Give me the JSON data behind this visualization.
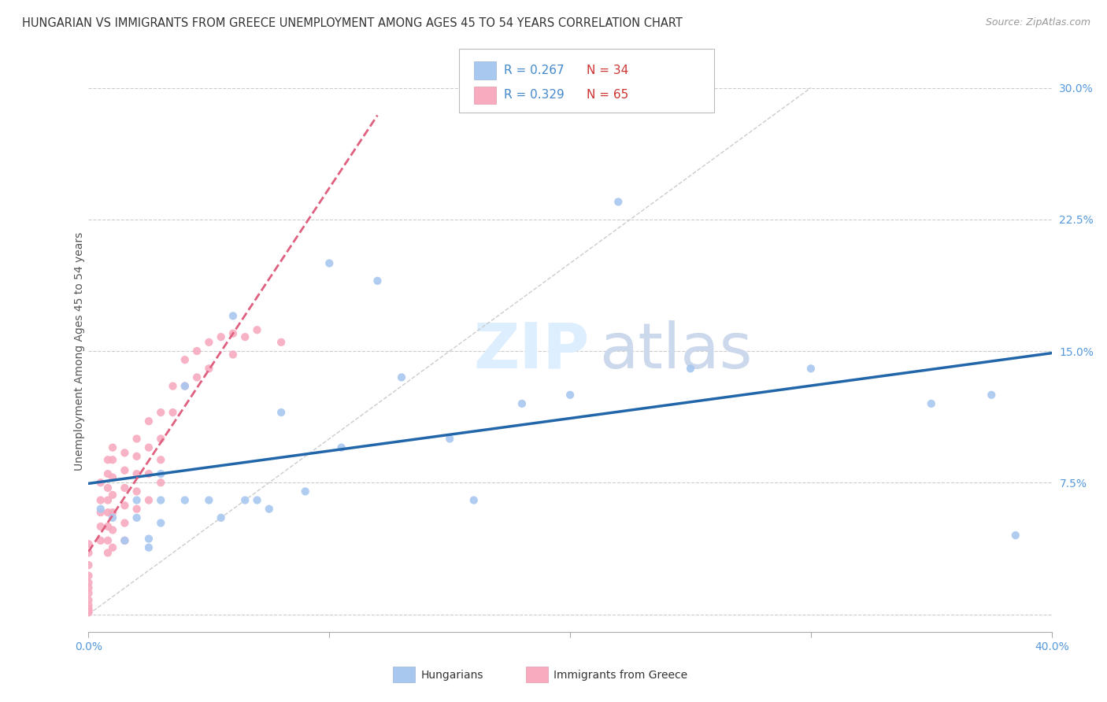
{
  "title": "HUNGARIAN VS IMMIGRANTS FROM GREECE UNEMPLOYMENT AMONG AGES 45 TO 54 YEARS CORRELATION CHART",
  "source": "Source: ZipAtlas.com",
  "ylabel": "Unemployment Among Ages 45 to 54 years",
  "xlim": [
    0.0,
    0.4
  ],
  "ylim": [
    -0.01,
    0.31
  ],
  "xticks": [
    0.0,
    0.1,
    0.2,
    0.3,
    0.4
  ],
  "yticks": [
    0.0,
    0.075,
    0.15,
    0.225,
    0.3
  ],
  "xticklabels": [
    "0.0%",
    "",
    "",
    "",
    "40.0%"
  ],
  "yticklabels": [
    "",
    "7.5%",
    "15.0%",
    "22.5%",
    "30.0%"
  ],
  "blue_R": "0.267",
  "blue_N": "34",
  "pink_R": "0.329",
  "pink_N": "65",
  "blue_dot_color": "#a8c8f0",
  "blue_line_color": "#2266aa",
  "pink_dot_color": "#f8aabf",
  "pink_line_color": "#e06080",
  "diag_color": "#cccccc",
  "text_color_blue": "#4488cc",
  "text_color_n": "#cc3333",
  "grid_color": "#cccccc",
  "background_color": "#ffffff",
  "title_fontsize": 10.5,
  "axis_label_fontsize": 10,
  "tick_fontsize": 10,
  "tick_color": "#5599dd",
  "blue_scatter_x": [
    0.005,
    0.01,
    0.015,
    0.02,
    0.02,
    0.025,
    0.025,
    0.03,
    0.03,
    0.03,
    0.04,
    0.04,
    0.05,
    0.055,
    0.06,
    0.065,
    0.07,
    0.075,
    0.08,
    0.09,
    0.1,
    0.105,
    0.12,
    0.13,
    0.15,
    0.16,
    0.18,
    0.2,
    0.22,
    0.25,
    0.3,
    0.35,
    0.375,
    0.385
  ],
  "blue_scatter_y": [
    0.06,
    0.055,
    0.042,
    0.065,
    0.055,
    0.043,
    0.038,
    0.08,
    0.065,
    0.052,
    0.13,
    0.065,
    0.065,
    0.055,
    0.17,
    0.065,
    0.065,
    0.06,
    0.115,
    0.07,
    0.2,
    0.095,
    0.19,
    0.135,
    0.1,
    0.065,
    0.12,
    0.125,
    0.235,
    0.14,
    0.14,
    0.12,
    0.125,
    0.045
  ],
  "pink_scatter_x": [
    0.0,
    0.0,
    0.0,
    0.0,
    0.0,
    0.0,
    0.0,
    0.0,
    0.0,
    0.0,
    0.0,
    0.0,
    0.005,
    0.005,
    0.005,
    0.005,
    0.005,
    0.008,
    0.008,
    0.008,
    0.008,
    0.008,
    0.008,
    0.008,
    0.008,
    0.01,
    0.01,
    0.01,
    0.01,
    0.01,
    0.01,
    0.01,
    0.015,
    0.015,
    0.015,
    0.015,
    0.015,
    0.015,
    0.02,
    0.02,
    0.02,
    0.02,
    0.02,
    0.025,
    0.025,
    0.025,
    0.025,
    0.03,
    0.03,
    0.03,
    0.03,
    0.035,
    0.035,
    0.04,
    0.04,
    0.045,
    0.045,
    0.05,
    0.05,
    0.055,
    0.06,
    0.06,
    0.065,
    0.07,
    0.08
  ],
  "pink_scatter_y": [
    0.04,
    0.035,
    0.028,
    0.022,
    0.018,
    0.015,
    0.012,
    0.008,
    0.005,
    0.003,
    0.002,
    0.001,
    0.075,
    0.065,
    0.058,
    0.05,
    0.042,
    0.088,
    0.08,
    0.072,
    0.065,
    0.058,
    0.05,
    0.042,
    0.035,
    0.095,
    0.088,
    0.078,
    0.068,
    0.058,
    0.048,
    0.038,
    0.092,
    0.082,
    0.072,
    0.062,
    0.052,
    0.042,
    0.1,
    0.09,
    0.08,
    0.07,
    0.06,
    0.11,
    0.095,
    0.08,
    0.065,
    0.115,
    0.1,
    0.088,
    0.075,
    0.13,
    0.115,
    0.145,
    0.13,
    0.15,
    0.135,
    0.155,
    0.14,
    0.158,
    0.16,
    0.148,
    0.158,
    0.162,
    0.155
  ]
}
